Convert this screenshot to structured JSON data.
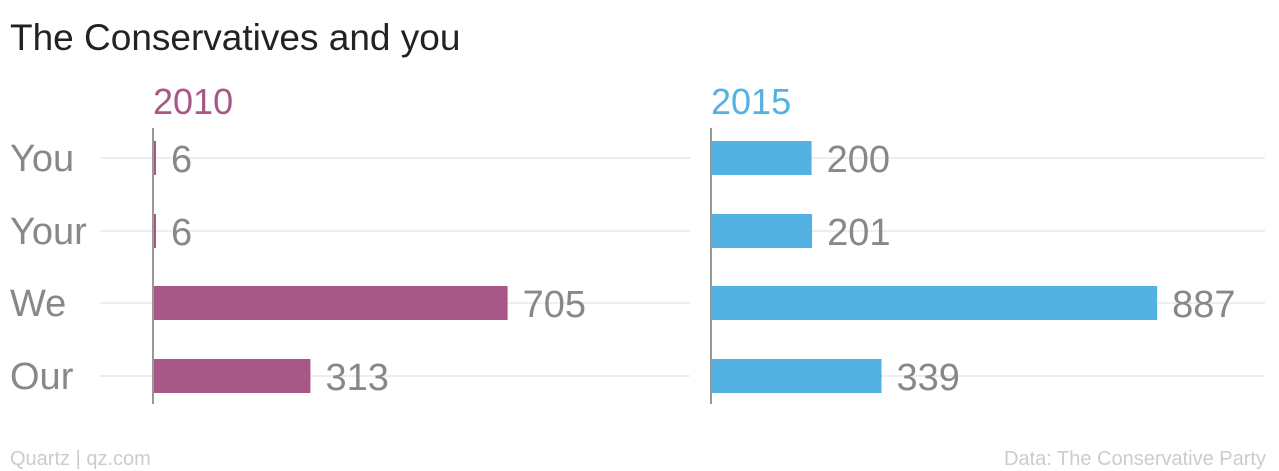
{
  "chart_data": {
    "type": "bar",
    "orientation": "horizontal",
    "title": "The Conservatives and you",
    "categories": [
      "You",
      "Your",
      "We",
      "Our"
    ],
    "series": [
      {
        "name": "2010",
        "color": "#a85886",
        "values": [
          6,
          6,
          705,
          313
        ]
      },
      {
        "name": "2015",
        "color": "#54b2e3",
        "values": [
          200,
          201,
          887,
          339
        ]
      }
    ],
    "xlim": [
      0,
      1000
    ],
    "grid": true
  },
  "footer": {
    "source_left": "Quartz | qz.com",
    "source_right": "Data: The Conservative Party"
  }
}
